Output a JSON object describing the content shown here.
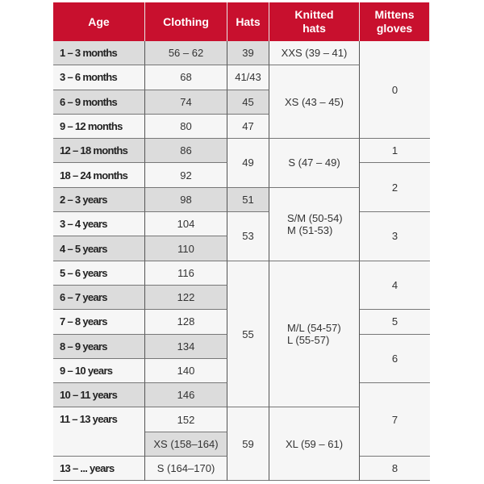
{
  "headers": [
    "Age",
    "Clothing",
    "Hats",
    "Knitted\nhats",
    "Mittens\ngloves"
  ],
  "age": [
    {
      "text": "1 – 3 months",
      "span": 1,
      "gray": true
    },
    {
      "text": "3 – 6 months",
      "span": 1
    },
    {
      "text": "6 – 9 months",
      "span": 1,
      "gray": true
    },
    {
      "text": "9 – 12 months",
      "span": 1
    },
    {
      "text": "12 – 18 months",
      "span": 1,
      "gray": true
    },
    {
      "text": "18 – 24 months",
      "span": 1
    },
    {
      "text": "2 – 3 years",
      "span": 1,
      "gray": true
    },
    {
      "text": "3 – 4 years",
      "span": 1
    },
    {
      "text": "4 – 5 years",
      "span": 1,
      "gray": true
    },
    {
      "text": "5 – 6 years",
      "span": 1
    },
    {
      "text": "6 – 7 years",
      "span": 1,
      "gray": true
    },
    {
      "text": "7 – 8 years",
      "span": 1
    },
    {
      "text": "8 – 9 years",
      "span": 1,
      "gray": true
    },
    {
      "text": "9 – 10 years",
      "span": 1
    },
    {
      "text": "10 – 11 years",
      "span": 1,
      "gray": true
    },
    {
      "text": "11 – 13 years",
      "span": 2,
      "top": true
    },
    {
      "text": "13 – ... years",
      "span": 1
    }
  ],
  "clothing": [
    {
      "text": "56 – 62",
      "span": 1,
      "gray": true
    },
    {
      "text": "68",
      "span": 1
    },
    {
      "text": "74",
      "span": 1,
      "gray": true
    },
    {
      "text": "80",
      "span": 1
    },
    {
      "text": "86",
      "span": 1,
      "gray": true
    },
    {
      "text": "92",
      "span": 1
    },
    {
      "text": "98",
      "span": 1,
      "gray": true
    },
    {
      "text": "104",
      "span": 1
    },
    {
      "text": "110",
      "span": 1,
      "gray": true
    },
    {
      "text": "116",
      "span": 1
    },
    {
      "text": "122",
      "span": 1,
      "gray": true
    },
    {
      "text": "128",
      "span": 1
    },
    {
      "text": "134",
      "span": 1,
      "gray": true
    },
    {
      "text": "140",
      "span": 1
    },
    {
      "text": "146",
      "span": 1,
      "gray": true
    },
    {
      "text": "152",
      "span": 1
    },
    {
      "text": "XS (158–164)",
      "span": 1,
      "gray": true
    },
    {
      "text": "S (164–170)",
      "span": 1
    }
  ],
  "hats": [
    {
      "text": "39",
      "span": 1,
      "gray": true
    },
    {
      "text": "41/43",
      "span": 1
    },
    {
      "text": "45",
      "span": 1,
      "gray": true
    },
    {
      "text": "47",
      "span": 1
    },
    {
      "text": "49",
      "span": 2
    },
    {
      "text": "51",
      "span": 1,
      "gray": true
    },
    {
      "text": "53",
      "span": 2
    },
    {
      "text": "55",
      "span": 6
    },
    {
      "text": "59",
      "span": 3
    }
  ],
  "knitted_hats": [
    {
      "text": "XXS (39 – 41)",
      "span": 1
    },
    {
      "text": "XS (43 – 45)",
      "span": 3
    },
    {
      "text": "S (47 – 49)",
      "span": 2
    },
    {
      "text": "S/M (50-54)\nM (51-53)",
      "span": 3,
      "left": true
    },
    {
      "text": "M/L (54-57)\nL (55-57)",
      "span": 6,
      "left": true
    },
    {
      "text": "XL (59 – 61)",
      "span": 3
    }
  ],
  "mittens_gloves": [
    {
      "text": "0",
      "span": 4
    },
    {
      "text": "1",
      "span": 1
    },
    {
      "text": "2",
      "span": 2
    },
    {
      "text": "3",
      "span": 2
    },
    {
      "text": "4",
      "span": 2
    },
    {
      "text": "5",
      "span": 1
    },
    {
      "text": "6",
      "span": 2
    },
    {
      "text": "7",
      "span": 3
    },
    {
      "text": "8",
      "span": 1
    }
  ],
  "colors": {
    "header": "#c8102e",
    "shade": "#dcdcdc",
    "cell": "#f6f6f6"
  }
}
